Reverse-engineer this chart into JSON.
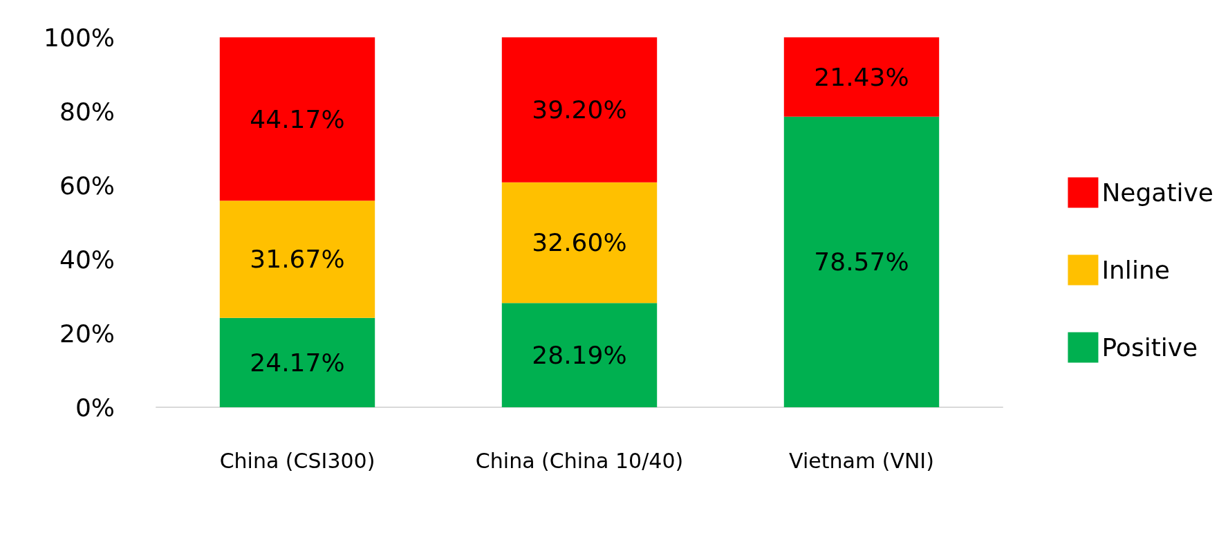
{
  "chart_data": {
    "type": "bar",
    "stacked": true,
    "categories": [
      "China (CSI300)",
      "China (China 10/40)",
      "Vietnam (VNI)"
    ],
    "series": [
      {
        "name": "Positive",
        "color": "#00b050",
        "values": [
          24.17,
          28.19,
          78.57
        ],
        "value_labels": [
          "24.17%",
          "28.19%",
          "78.57%"
        ]
      },
      {
        "name": "Inline",
        "color": "#ffc000",
        "values": [
          31.67,
          32.6,
          null
        ],
        "value_labels": [
          "31.67%",
          "32.60%",
          null
        ]
      },
      {
        "name": "Negative",
        "color": "#ff0000",
        "values": [
          44.17,
          39.2,
          21.43
        ],
        "value_labels": [
          "44.17%",
          "39.20%",
          "21.43%"
        ]
      }
    ],
    "ylim": [
      0,
      100
    ],
    "yticks": [
      {
        "value": 0,
        "label": "0%"
      },
      {
        "value": 20,
        "label": "20%"
      },
      {
        "value": 40,
        "label": "40%"
      },
      {
        "value": 60,
        "label": "60%"
      },
      {
        "value": 80,
        "label": "80%"
      },
      {
        "value": 100,
        "label": "100%"
      }
    ],
    "grid": false,
    "legend": "right"
  }
}
